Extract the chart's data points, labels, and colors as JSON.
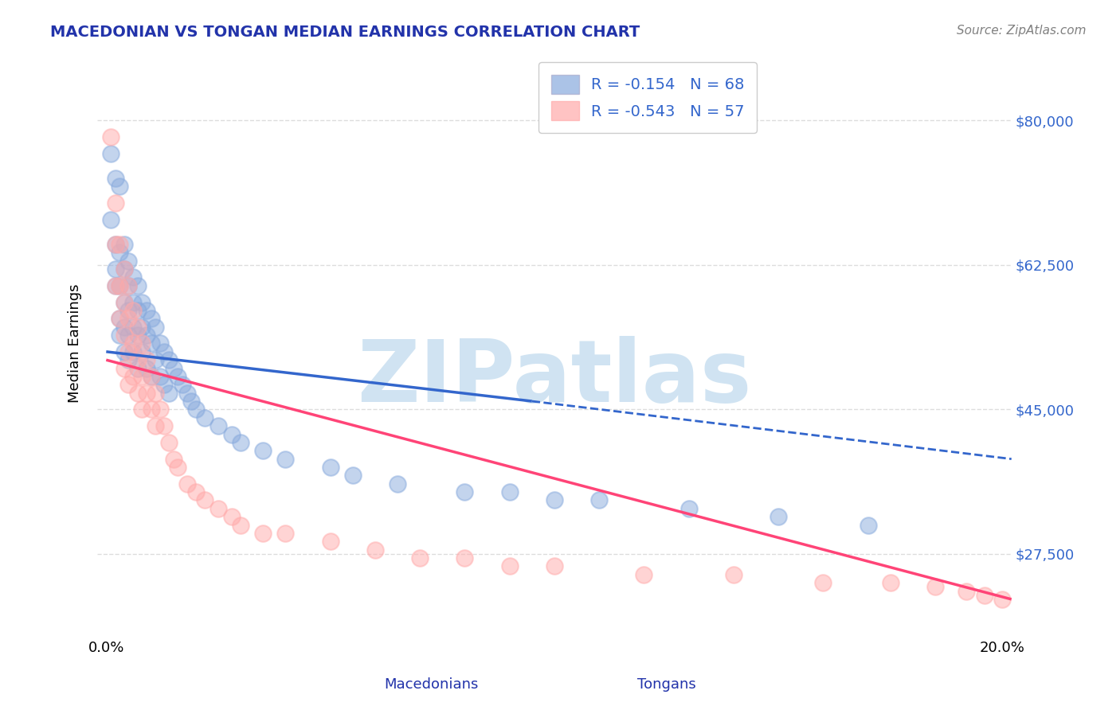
{
  "title": "MACEDONIAN VS TONGAN MEDIAN EARNINGS CORRELATION CHART",
  "source": "Source: ZipAtlas.com",
  "ylabel": "Median Earnings",
  "xlim": [
    -0.002,
    0.202
  ],
  "ylim": [
    18000,
    88000
  ],
  "yticks": [
    27500,
    45000,
    62500,
    80000
  ],
  "xticks": [
    0.0,
    0.05,
    0.1,
    0.15,
    0.2
  ],
  "xtick_labels": [
    "0.0%",
    "",
    "",
    "",
    "20.0%"
  ],
  "ytick_labels": [
    "$27,500",
    "$45,000",
    "$62,500",
    "$80,000"
  ],
  "macedonian_R": -0.154,
  "macedonian_N": 68,
  "tongan_R": -0.543,
  "tongan_N": 57,
  "macedonian_color": "#88AADD",
  "tongan_color": "#FFAAAA",
  "macedonian_line_color": "#3366CC",
  "tongan_line_color": "#FF4477",
  "watermark": "ZIPatlas",
  "watermark_color": "#C8DFF0",
  "background_color": "#FFFFFF",
  "grid_color": "#DDDDDD",
  "title_color": "#2233AA",
  "tick_label_color": "#3366CC",
  "macedonian_scatter_x": [
    0.001,
    0.001,
    0.002,
    0.002,
    0.002,
    0.002,
    0.003,
    0.003,
    0.003,
    0.003,
    0.003,
    0.004,
    0.004,
    0.004,
    0.004,
    0.004,
    0.005,
    0.005,
    0.005,
    0.005,
    0.005,
    0.006,
    0.006,
    0.006,
    0.006,
    0.007,
    0.007,
    0.007,
    0.007,
    0.008,
    0.008,
    0.008,
    0.009,
    0.009,
    0.009,
    0.01,
    0.01,
    0.01,
    0.011,
    0.011,
    0.012,
    0.012,
    0.013,
    0.013,
    0.014,
    0.014,
    0.015,
    0.016,
    0.017,
    0.018,
    0.019,
    0.02,
    0.022,
    0.025,
    0.028,
    0.03,
    0.035,
    0.04,
    0.05,
    0.055,
    0.065,
    0.08,
    0.09,
    0.1,
    0.11,
    0.13,
    0.15,
    0.17
  ],
  "macedonian_scatter_y": [
    76000,
    68000,
    73000,
    65000,
    62000,
    60000,
    72000,
    64000,
    60000,
    56000,
    54000,
    65000,
    62000,
    58000,
    55000,
    52000,
    63000,
    60000,
    57000,
    54000,
    51000,
    61000,
    58000,
    55000,
    52000,
    60000,
    57000,
    54000,
    50000,
    58000,
    55000,
    52000,
    57000,
    54000,
    50000,
    56000,
    53000,
    49000,
    55000,
    51000,
    53000,
    49000,
    52000,
    48000,
    51000,
    47000,
    50000,
    49000,
    48000,
    47000,
    46000,
    45000,
    44000,
    43000,
    42000,
    41000,
    40000,
    39000,
    38000,
    37000,
    36000,
    35000,
    35000,
    34000,
    34000,
    33000,
    32000,
    31000
  ],
  "tongan_scatter_x": [
    0.001,
    0.002,
    0.002,
    0.002,
    0.003,
    0.003,
    0.003,
    0.004,
    0.004,
    0.004,
    0.004,
    0.005,
    0.005,
    0.005,
    0.005,
    0.006,
    0.006,
    0.006,
    0.007,
    0.007,
    0.007,
    0.008,
    0.008,
    0.008,
    0.009,
    0.009,
    0.01,
    0.01,
    0.011,
    0.011,
    0.012,
    0.013,
    0.014,
    0.015,
    0.016,
    0.018,
    0.02,
    0.022,
    0.025,
    0.028,
    0.03,
    0.035,
    0.04,
    0.05,
    0.06,
    0.07,
    0.08,
    0.09,
    0.1,
    0.12,
    0.14,
    0.16,
    0.175,
    0.185,
    0.192,
    0.196,
    0.2
  ],
  "tongan_scatter_y": [
    78000,
    70000,
    65000,
    60000,
    65000,
    60000,
    56000,
    62000,
    58000,
    54000,
    50000,
    60000,
    56000,
    52000,
    48000,
    57000,
    53000,
    49000,
    55000,
    51000,
    47000,
    53000,
    49000,
    45000,
    51000,
    47000,
    49000,
    45000,
    47000,
    43000,
    45000,
    43000,
    41000,
    39000,
    38000,
    36000,
    35000,
    34000,
    33000,
    32000,
    31000,
    30000,
    30000,
    29000,
    28000,
    27000,
    27000,
    26000,
    26000,
    25000,
    25000,
    24000,
    24000,
    23500,
    23000,
    22500,
    22000
  ],
  "mac_line_x0": 0.0,
  "mac_line_x1": 0.095,
  "mac_line_dashed_x0": 0.095,
  "mac_line_dashed_x1": 0.202,
  "mac_line_y0": 52000,
  "mac_line_y1": 46000,
  "mac_line_dashed_y0": 46000,
  "mac_line_dashed_y1": 39000,
  "ton_line_x0": 0.0,
  "ton_line_x1": 0.202,
  "ton_line_y0": 51000,
  "ton_line_y1": 22000
}
